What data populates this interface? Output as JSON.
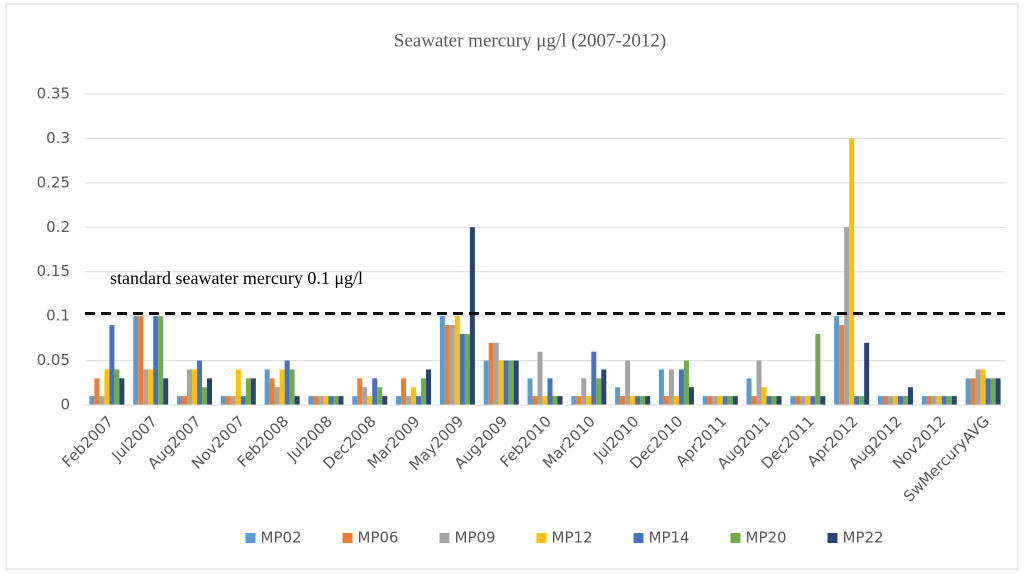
{
  "chart_data": {
    "type": "bar",
    "title": "Seawater mercury μg/l (2007-2012)",
    "categories": [
      "Feb2007",
      "Jul2007",
      "Aug2007",
      "Nov2007",
      "Feb2008",
      "Jul2008",
      "Dec2008",
      "Mar2009",
      "May2009",
      "Aug2009",
      "Feb2010",
      "Mar2010",
      "Jul2010",
      "Dec2010",
      "Apr2011",
      "Aug2011",
      "Dec2011",
      "Apr2012",
      "Aug2012",
      "Nov2012",
      "SwMercuryAVG"
    ],
    "series": [
      {
        "name": "MP02",
        "color": "#5b9bd5",
        "values": [
          0.01,
          0.1,
          0.01,
          0.01,
          0.04,
          0.01,
          0.01,
          0.01,
          0.1,
          0.05,
          0.03,
          0.01,
          0.02,
          0.04,
          0.01,
          0.03,
          0.01,
          0.1,
          0.01,
          0.01,
          0.03
        ]
      },
      {
        "name": "MP06",
        "color": "#ed7d31",
        "values": [
          0.03,
          0.1,
          0.01,
          0.01,
          0.03,
          0.01,
          0.03,
          0.03,
          0.09,
          0.07,
          0.01,
          0.01,
          0.01,
          0.01,
          0.01,
          0.01,
          0.01,
          0.09,
          0.01,
          0.01,
          0.03
        ]
      },
      {
        "name": "MP09",
        "color": "#a5a5a5",
        "values": [
          0.01,
          0.04,
          0.04,
          0.01,
          0.02,
          0.01,
          0.02,
          0.01,
          0.09,
          0.07,
          0.06,
          0.03,
          0.05,
          0.04,
          0.01,
          0.05,
          0.01,
          0.2,
          0.01,
          0.01,
          0.04
        ]
      },
      {
        "name": "MP12",
        "color": "#ffc000",
        "values": [
          0.04,
          0.04,
          0.04,
          0.04,
          0.04,
          0.01,
          0.01,
          0.02,
          0.1,
          0.05,
          0.01,
          0.01,
          0.01,
          0.01,
          0.01,
          0.02,
          0.01,
          0.3,
          0.01,
          0.01,
          0.04
        ]
      },
      {
        "name": "MP14",
        "color": "#4472c4",
        "values": [
          0.09,
          0.1,
          0.05,
          0.01,
          0.05,
          0.01,
          0.03,
          0.01,
          0.08,
          0.05,
          0.03,
          0.06,
          0.01,
          0.04,
          0.01,
          0.01,
          0.01,
          0.01,
          0.01,
          0.01,
          0.03
        ]
      },
      {
        "name": "MP20",
        "color": "#70ad47",
        "values": [
          0.04,
          0.1,
          0.02,
          0.03,
          0.04,
          0.01,
          0.02,
          0.03,
          0.08,
          0.05,
          0.01,
          0.03,
          0.01,
          0.05,
          0.01,
          0.01,
          0.08,
          0.01,
          0.01,
          0.01,
          0.03
        ]
      },
      {
        "name": "MP22",
        "color": "#264478",
        "values": [
          0.03,
          0.03,
          0.03,
          0.03,
          0.01,
          0.01,
          0.01,
          0.04,
          0.2,
          0.05,
          0.01,
          0.04,
          0.01,
          0.02,
          0.01,
          0.01,
          0.01,
          0.07,
          0.02,
          0.01,
          0.03
        ]
      }
    ],
    "ylim": [
      0,
      0.35
    ],
    "yticks": [
      0,
      0.05,
      0.1,
      0.15,
      0.2,
      0.25,
      0.3,
      0.35
    ],
    "grid": true,
    "reference_line": 0.103,
    "annotation": "standard seawater mercury 0.1 μg/l",
    "legend": "bottom"
  }
}
